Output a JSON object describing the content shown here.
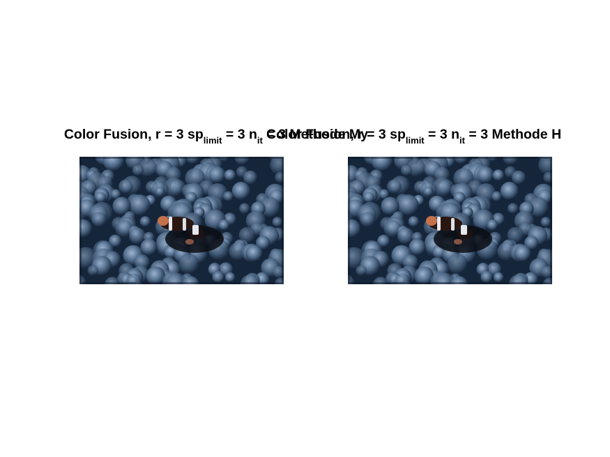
{
  "figure": {
    "panels": [
      {
        "title": {
          "prefix": "Color Fusion, r = 3 sp",
          "sub1": "limit",
          "mid": " = 3 n",
          "sub2": "it",
          "suffix": " = 3 Methode My"
        },
        "image": "clownfish-in-sea-anemone"
      },
      {
        "title": {
          "prefix": "Color Fusion, r = 3 sp",
          "sub1": "limit",
          "mid": " = 3 n",
          "sub2": "it",
          "suffix": " = 3 Methode H"
        },
        "image": "clownfish-in-sea-anemone"
      }
    ]
  }
}
